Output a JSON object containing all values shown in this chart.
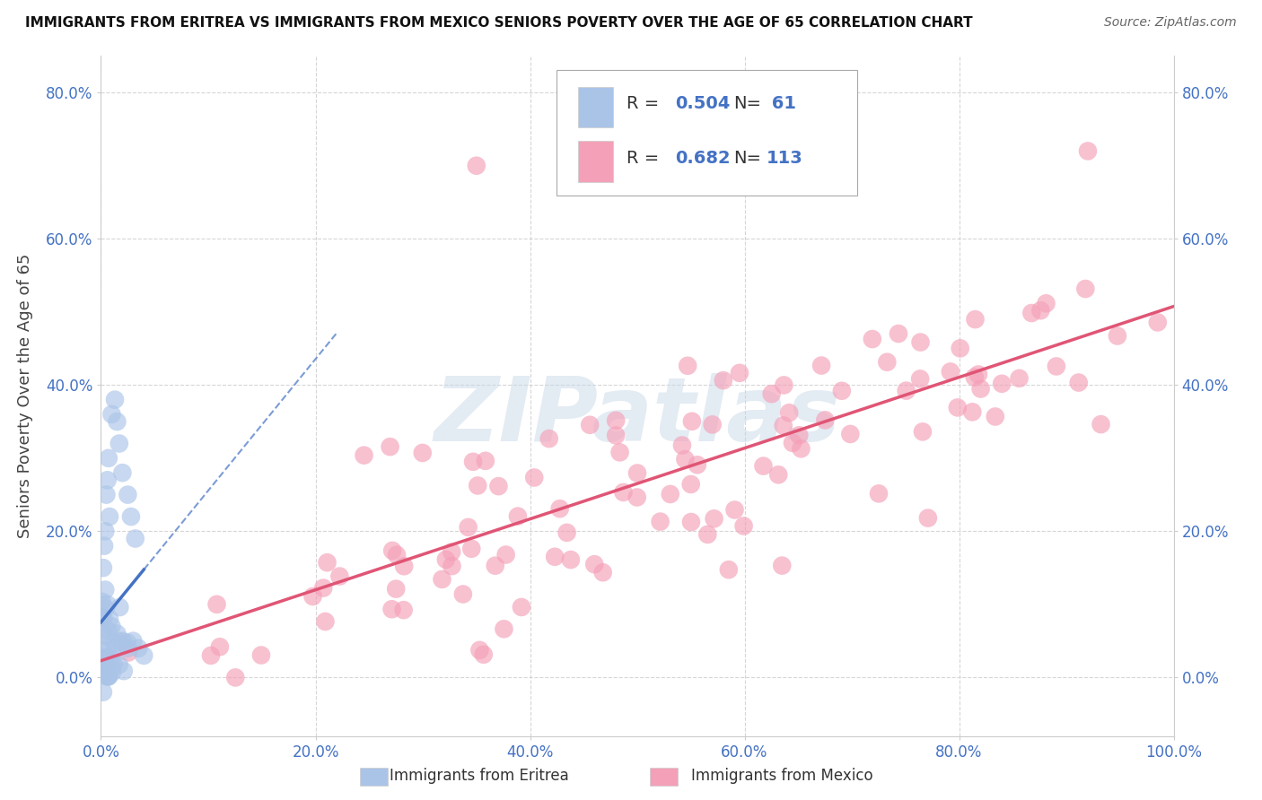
{
  "title": "IMMIGRANTS FROM ERITREA VS IMMIGRANTS FROM MEXICO SENIORS POVERTY OVER THE AGE OF 65 CORRELATION CHART",
  "source": "Source: ZipAtlas.com",
  "ylabel": "Seniors Poverty Over the Age of 65",
  "watermark_text": "ZIPatlas",
  "eritrea_R": 0.504,
  "eritrea_N": 61,
  "mexico_R": 0.682,
  "mexico_N": 113,
  "eritrea_color": "#aac4e8",
  "eritrea_line_color": "#4472c4",
  "mexico_color": "#f4a0b8",
  "mexico_line_color": "#e05575",
  "background_color": "#ffffff",
  "grid_color": "#cccccc",
  "xlim": [
    0,
    1.0
  ],
  "ylim": [
    0,
    0.85
  ],
  "xticks": [
    0.0,
    0.2,
    0.4,
    0.6,
    0.8,
    1.0
  ],
  "xticklabels": [
    "0.0%",
    "20.0%",
    "40.0%",
    "60.0%",
    "80.0%",
    "100.0%"
  ],
  "yticks": [
    0.0,
    0.2,
    0.4,
    0.6,
    0.8
  ],
  "yticklabels": [
    "0.0%",
    "20.0%",
    "40.0%",
    "60.0%",
    "80.0%"
  ],
  "tick_color": "#4472c4",
  "legend_label_eritrea": "Immigrants from Eritrea",
  "legend_label_mexico": "Immigrants from Mexico"
}
